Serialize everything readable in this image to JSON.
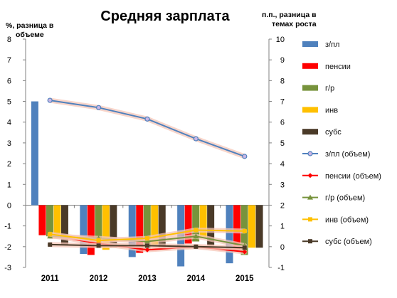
{
  "chart_data": {
    "type": "bar+line",
    "title": "Средняя зарплата",
    "y_left_label": [
      "%, разница в",
      "объеме"
    ],
    "y_right_label": [
      "п.п., разница в",
      "темах роста"
    ],
    "y_left_range": [
      -3,
      8
    ],
    "y_right_range": [
      -1,
      10
    ],
    "y_left_ticks": [
      "8",
      "7",
      "6",
      "5",
      "4",
      "3",
      "2",
      "1",
      "0",
      "-1",
      "-2",
      "-3"
    ],
    "y_right_ticks": [
      "10",
      "9",
      "8",
      "7",
      "6",
      "5",
      "4",
      "3",
      "2",
      "1",
      "0",
      "-1"
    ],
    "categories": [
      "2011",
      "2012",
      "2013",
      "2014",
      "2015"
    ],
    "bar_series": [
      {
        "name": "з/пл",
        "color": "#4f81bd",
        "values": [
          5.0,
          -2.35,
          -2.5,
          -2.95,
          -2.8
        ]
      },
      {
        "name": "пенсии",
        "color": "#ff0000",
        "values": [
          -1.45,
          -2.4,
          -2.3,
          -1.85,
          -2.2
        ]
      },
      {
        "name": "г/р",
        "color": "#77933c",
        "values": [
          -1.5,
          -2.05,
          -2.1,
          -1.75,
          -2.4
        ]
      },
      {
        "name": "инв",
        "color": "#ffc000",
        "values": [
          -1.6,
          -2.15,
          -1.9,
          -1.6,
          -2.05
        ]
      },
      {
        "name": "субс",
        "color": "#4a3a28",
        "values": [
          -1.9,
          -2.05,
          -2.05,
          -1.95,
          -2.05
        ]
      }
    ],
    "line_series": [
      {
        "name": "з/пл (объем)",
        "color": "#4f81bd",
        "marker": "circle",
        "values": [
          7.05,
          6.7,
          6.15,
          5.2,
          4.35
        ]
      },
      {
        "name": "пенсии (объем)",
        "color": "#ff0000",
        "marker": "diamond",
        "values": [
          0.55,
          0.15,
          -0.15,
          0.0,
          -0.25
        ]
      },
      {
        "name": "г/р (объем)",
        "color": "#77933c",
        "marker": "triangle",
        "values": [
          0.5,
          0.4,
          0.25,
          0.5,
          0.05
        ]
      },
      {
        "name": "инв (объем)",
        "color": "#ffc000",
        "marker": "square",
        "values": [
          0.6,
          0.3,
          0.4,
          0.8,
          0.75
        ]
      },
      {
        "name": "субс (объем)",
        "color": "#4a3a28",
        "marker": "square",
        "values": [
          0.1,
          0.05,
          0.05,
          0.0,
          -0.05
        ]
      }
    ]
  }
}
